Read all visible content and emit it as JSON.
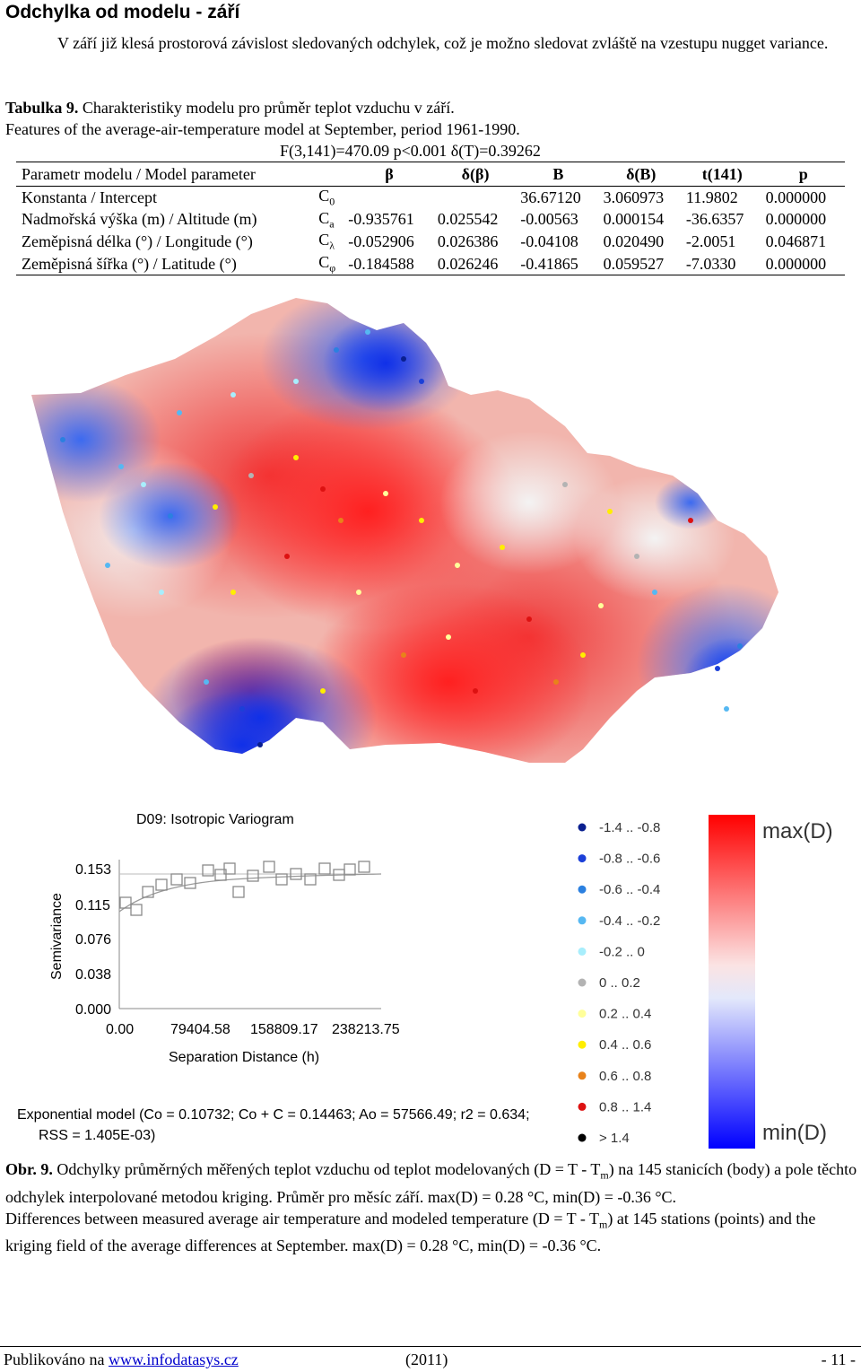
{
  "title": "Odchylka od modelu - září",
  "intro": "V září již klesá prostorová závislost sledovaných odchylek, což je možno sledovat zvláště na vzestupu nugget variance.",
  "table_caption": {
    "label": "Tabulka 9.",
    "cz": " Charakteristiky modelu pro průměr teplot vzduchu v září.",
    "en": "Features of the average-air-temperature model at September, period 1961-1990.",
    "stats": "F(3,141)=470.09 p<0.001 δ(T)=0.39262"
  },
  "table": {
    "headers": [
      "Parametr modelu / Model parameter",
      "",
      "β",
      "δ(β)",
      "B",
      "δ(B)",
      "t(141)",
      "p"
    ],
    "rows": [
      {
        "name": "Konstanta / Intercept",
        "sym": "C",
        "sub": "0",
        "beta": "",
        "dbeta": "",
        "B": "36.67120",
        "dB": "3.060973",
        "t": "11.9802",
        "p": "0.000000"
      },
      {
        "name": "Nadmořská výška (m) / Altitude (m)",
        "sym": "C",
        "sub": "a",
        "beta": "-0.935761",
        "dbeta": "0.025542",
        "B": "-0.00563",
        "dB": "0.000154",
        "t": "-36.6357",
        "p": "0.000000"
      },
      {
        "name": "Zeměpisná délka (°) / Longitude (°)",
        "sym": "C",
        "sub": "λ",
        "beta": "-0.052906",
        "dbeta": "0.026386",
        "B": "-0.04108",
        "dB": "0.020490",
        "t": "-2.0051",
        "p": "0.046871"
      },
      {
        "name": "Zeměpisná šířka (°) / Latitude (°)",
        "sym": "C",
        "sub": "φ",
        "beta": "-0.184588",
        "dbeta": "0.026246",
        "B": "-0.41865",
        "dB": "0.059527",
        "t": "-7.0330",
        "p": "0.000000"
      }
    ]
  },
  "variogram": {
    "title": "D09: Isotropic Variogram",
    "ylabel": "Semivariance",
    "xlabel": "Separation Distance (h)",
    "yticks": [
      "0.153",
      "0.115",
      "0.076",
      "0.038",
      "0.000"
    ],
    "xticks": [
      "0.00",
      "79404.58",
      "158809.17",
      "238213.75"
    ],
    "model_line1": "Exponential model (Co = 0.10732; Co + C = 0.14463; Ao = 57566.49; r2 = 0.634;",
    "model_line2": "RSS = 1.405E-03)"
  },
  "legend": {
    "items": [
      {
        "label": "-1.4 .. -0.8",
        "color": "#0a1f8f"
      },
      {
        "label": "-0.8 .. -0.6",
        "color": "#1b3fd8"
      },
      {
        "label": "-0.6 .. -0.4",
        "color": "#2b80e0"
      },
      {
        "label": "-0.4 .. -0.2",
        "color": "#56b8f2"
      },
      {
        "label": "-0.2 .. 0",
        "color": "#a8eefc"
      },
      {
        "label": "0 .. 0.2",
        "color": "#b3b3b3"
      },
      {
        "label": "0.2 .. 0.4",
        "color": "#ffff9a"
      },
      {
        "label": "0.4 .. 0.6",
        "color": "#ffee00"
      },
      {
        "label": "0.6 .. 0.8",
        "color": "#e8821a"
      },
      {
        "label": "0.8 .. 1.4",
        "color": "#dd1111"
      },
      {
        "label": "> 1.4",
        "color": "#000000"
      }
    ],
    "max_label": "max(D)",
    "min_label": "min(D)"
  },
  "figure_caption": {
    "label": "Obr. 9.",
    "cz_a": " Odchylky průměrných měřených teplot vzduchu od teplot modelovaných (D = T - T",
    "cz_sub": "m",
    "cz_b": ") na 145 stanicích (body) a pole těchto odchylek interpolované metodou kriging. Průměr pro měsíc září. max(D) = 0.28 °C, min(D) = -0.36 °C.",
    "en_a": "Differences between measured average air temperature and modeled temperature (D = T - T",
    "en_sub": "m",
    "en_b": ") at 145 stations (points) and the kriging field of the average differences at September. max(D) = 0.28 °C, min(D) = -0.36 °C."
  },
  "footer": {
    "published": "Publikováno na ",
    "link": "www.infodatasys.cz",
    "year": "(2011)",
    "page": "- 11 -"
  }
}
